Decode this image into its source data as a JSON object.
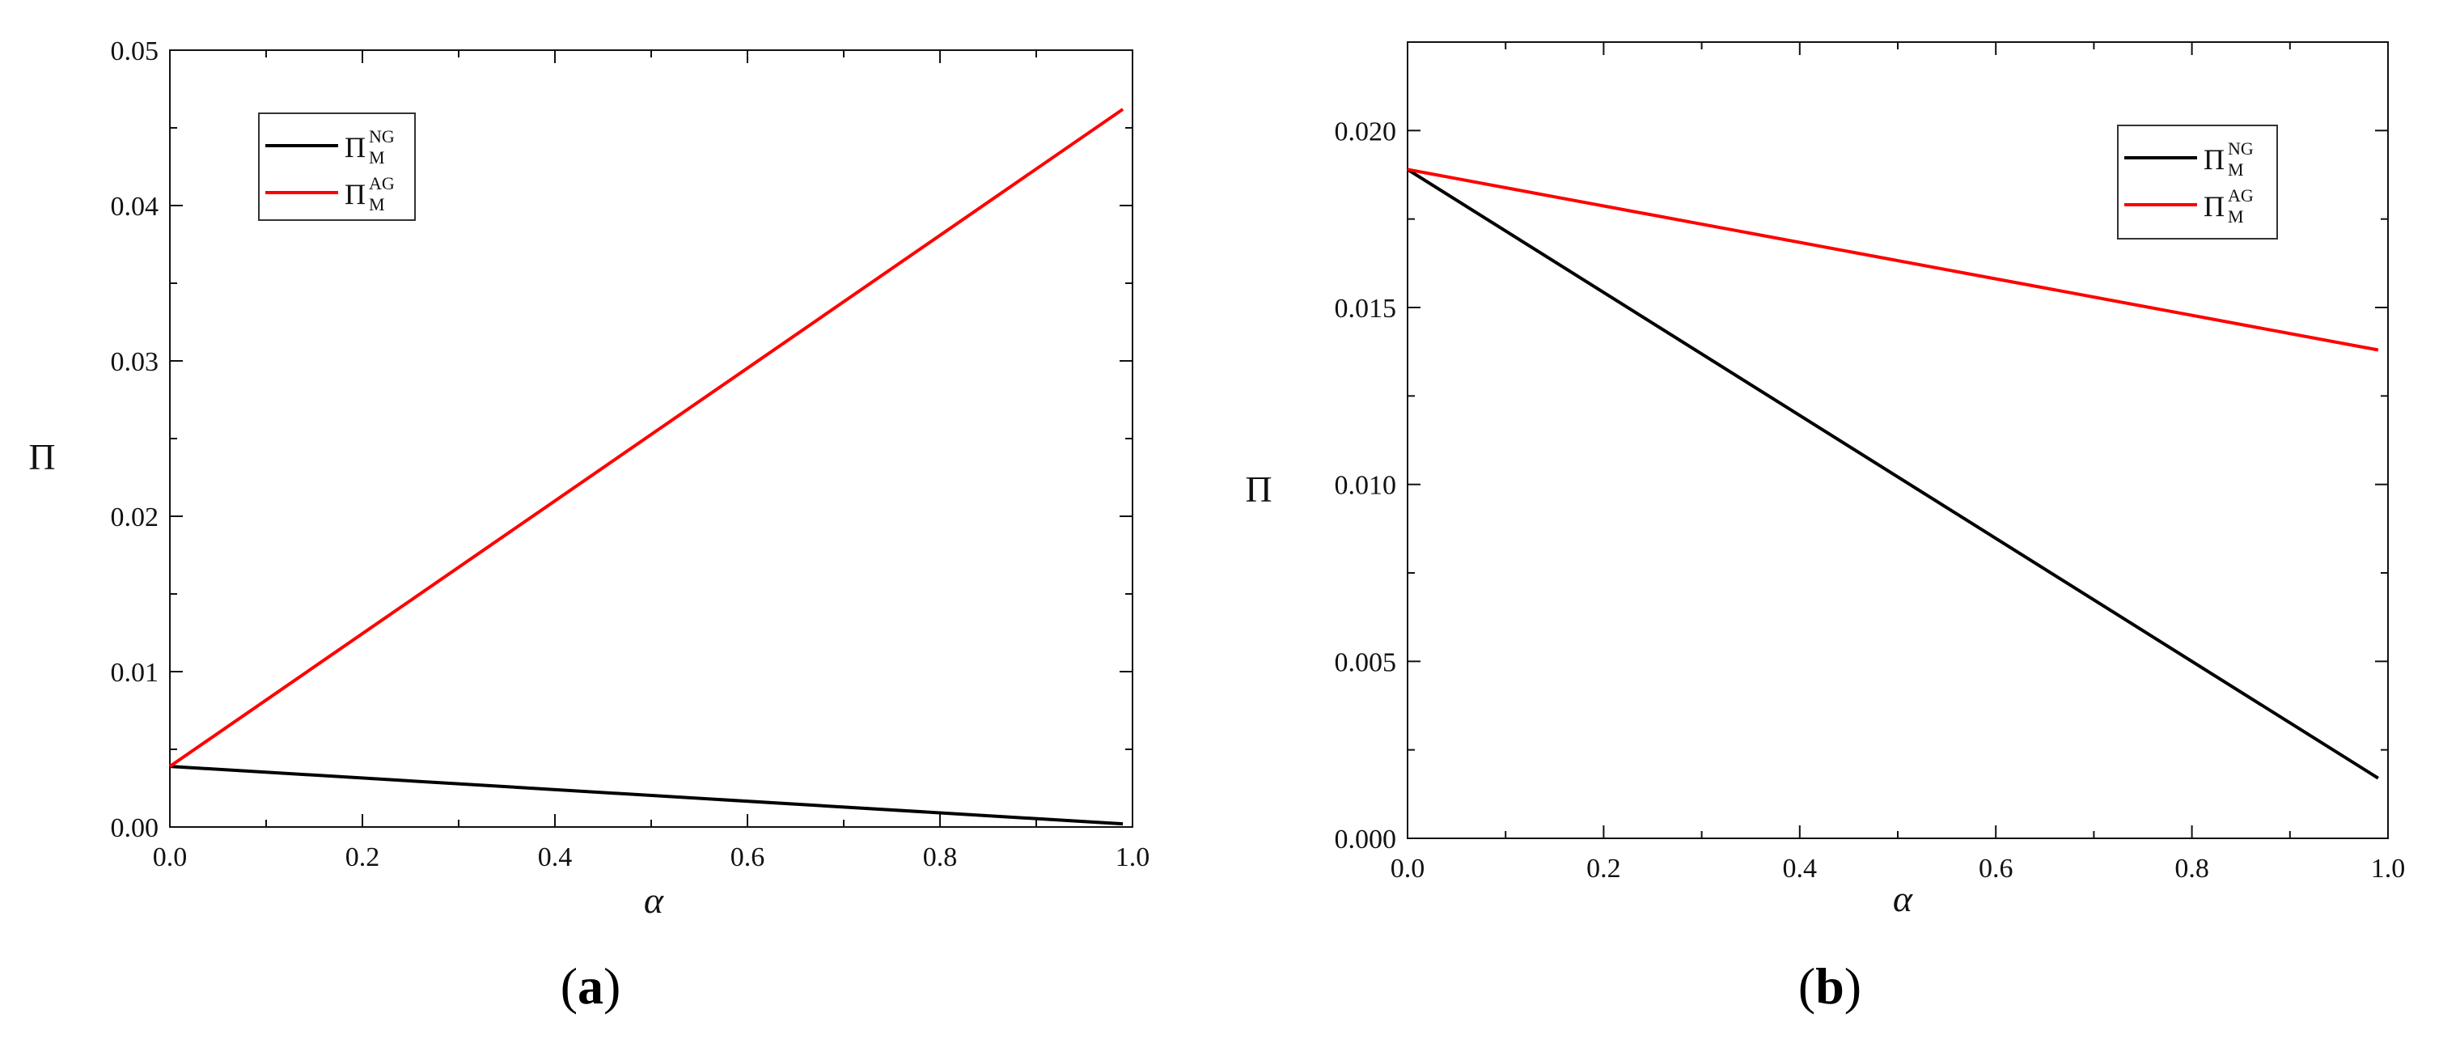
{
  "chart_data": [
    {
      "panel": "(a)",
      "panel_open": "(",
      "panel_letter": "a",
      "panel_close": ")",
      "type": "line",
      "xlabel": "α",
      "ylabel": "Π",
      "xlim": [
        0,
        1.0
      ],
      "ylim": [
        0,
        0.05
      ],
      "x_ticks": [
        "0.0",
        "0.2",
        "0.4",
        "0.6",
        "0.8",
        "1.0"
      ],
      "y_ticks": [
        "0.00",
        "0.01",
        "0.02",
        "0.03",
        "0.04",
        "0.05"
      ],
      "grid": false,
      "legend_position": "top-left",
      "series": [
        {
          "name": "Π_M^NG",
          "base": "Π",
          "sub": "M",
          "sup": "NG",
          "color": "#000000",
          "x": [
            0.0,
            0.99
          ],
          "y": [
            0.0039,
            0.0002
          ]
        },
        {
          "name": "Π_M^AG",
          "base": "Π",
          "sub": "M",
          "sup": "AG",
          "color": "#ff0000",
          "x": [
            0.0,
            0.99
          ],
          "y": [
            0.0039,
            0.0462
          ]
        }
      ]
    },
    {
      "panel": "(b)",
      "panel_open": "(",
      "panel_letter": "b",
      "panel_close": ")",
      "type": "line",
      "xlabel": "α",
      "ylabel": "Π",
      "xlim": [
        0,
        1.0
      ],
      "ylim": [
        0,
        0.0225
      ],
      "x_ticks": [
        "0.0",
        "0.2",
        "0.4",
        "0.6",
        "0.8",
        "1.0"
      ],
      "y_ticks": [
        "0.000",
        "0.005",
        "0.010",
        "0.015",
        "0.020"
      ],
      "grid": false,
      "legend_position": "top-right",
      "series": [
        {
          "name": "Π_M^NG",
          "base": "Π",
          "sub": "M",
          "sup": "NG",
          "color": "#000000",
          "x": [
            0.0,
            0.99
          ],
          "y": [
            0.0189,
            0.0017
          ]
        },
        {
          "name": "Π_M^AG",
          "base": "Π",
          "sub": "M",
          "sup": "AG",
          "color": "#ff0000",
          "x": [
            0.0,
            0.99
          ],
          "y": [
            0.0189,
            0.0138
          ]
        }
      ]
    }
  ]
}
